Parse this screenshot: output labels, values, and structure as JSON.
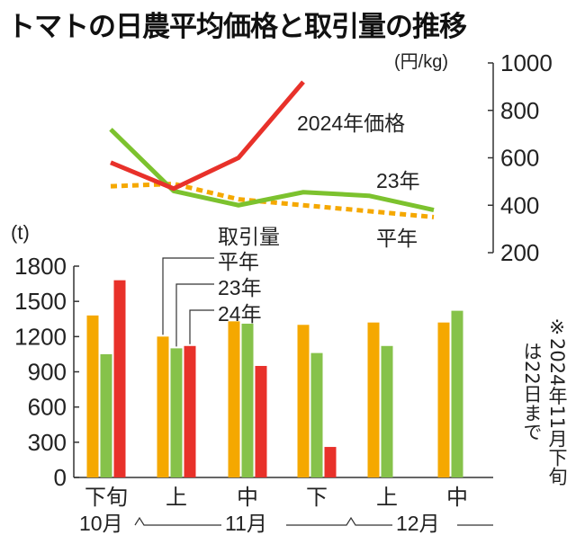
{
  "chart_data": [
    {
      "type": "line",
      "title": "トマトの日農平均価格と取引量の推移",
      "yunit": "(円/kg)",
      "ylim": [
        200,
        1000
      ],
      "yticks": [
        "1000",
        "800",
        "600",
        "400",
        "200"
      ],
      "categories": [
        "10月下旬",
        "11月上旬",
        "11月中旬",
        "11月下旬",
        "12月上旬",
        "12月中旬"
      ],
      "series": [
        {
          "name": "2024年価格",
          "values": [
            580,
            470,
            600,
            920,
            null,
            null
          ],
          "color": "#e8312a",
          "style": "solid"
        },
        {
          "name": "23年",
          "values": [
            720,
            460,
            400,
            455,
            440,
            380
          ],
          "color": "#7cc22e",
          "style": "solid"
        },
        {
          "name": "平年",
          "values": [
            480,
            490,
            425,
            400,
            375,
            350
          ],
          "color": "#f5a800",
          "style": "dashed"
        }
      ]
    },
    {
      "type": "bar",
      "label": "取引量",
      "yunit": "(t)",
      "ylim": [
        0,
        1800
      ],
      "yticks": [
        "1800",
        "1500",
        "1200",
        "900",
        "600",
        "300",
        "0"
      ],
      "categories": [
        "下旬",
        "上",
        "中",
        "下",
        "上",
        "中"
      ],
      "month_axis": [
        "10月",
        "11月",
        "12月"
      ],
      "series": [
        {
          "name": "平年",
          "values": [
            1380,
            1200,
            1330,
            1300,
            1320,
            1320
          ],
          "color": "#f5a800"
        },
        {
          "name": "23年",
          "values": [
            1050,
            1100,
            1310,
            1060,
            1120,
            1420
          ],
          "color": "#86c24a"
        },
        {
          "name": "24年",
          "values": [
            1680,
            1120,
            950,
            260,
            null,
            null
          ],
          "color": "#e8312a"
        }
      ],
      "note_lines": [
        "※2024年11月下旬",
        "は22日まで"
      ]
    }
  ]
}
